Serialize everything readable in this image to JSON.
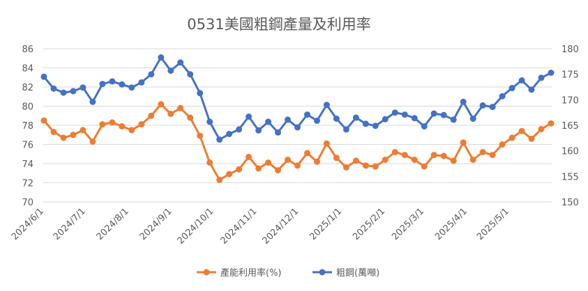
{
  "chart_data": {
    "type": "line",
    "title": "0531美國粗鋼產量及利用率",
    "x_ticks": [
      "2024/6/1",
      "2024/7/1",
      "2024/8/1",
      "2024/9/1",
      "2024/10/1",
      "2024/11/1",
      "2024/12/1",
      "2025/1/1",
      "2025/2/1",
      "2025/3/1",
      "2025/4/1",
      "2025/5/1"
    ],
    "x_range": [
      "2024-06-01",
      "2025-05-31"
    ],
    "y_left": {
      "min": 70,
      "max": 86,
      "step": 2,
      "ticks": [
        "70",
        "72",
        "74",
        "76",
        "78",
        "80",
        "82",
        "84",
        "86"
      ]
    },
    "y_right": {
      "min": 150,
      "max": 180,
      "step": 5,
      "ticks": [
        "150",
        "155",
        "160",
        "165",
        "170",
        "175",
        "180"
      ]
    },
    "grid": true,
    "legend_position": "bottom",
    "series": [
      {
        "name": "產能利用率(%)",
        "axis": "left",
        "color": "#ED7D31",
        "values": [
          78.5,
          77.3,
          76.7,
          77.0,
          77.5,
          76.3,
          78.1,
          78.3,
          77.9,
          77.5,
          78.1,
          79.0,
          80.2,
          79.2,
          79.8,
          78.8,
          76.9,
          74.1,
          72.3,
          72.9,
          73.4,
          74.7,
          73.5,
          74.1,
          73.3,
          74.4,
          73.8,
          75.1,
          74.2,
          76.1,
          74.6,
          73.6,
          74.3,
          73.8,
          73.7,
          74.4,
          75.2,
          74.9,
          74.4,
          73.7,
          74.9,
          74.8,
          74.3,
          76.2,
          74.4,
          75.2,
          74.9,
          76.0,
          76.7,
          77.4,
          76.6,
          77.6,
          78.2
        ]
      },
      {
        "name": "粗鋼(萬噸)",
        "axis": "right",
        "color": "#4472C4",
        "values": [
          174.5,
          172.2,
          171.4,
          171.7,
          172.4,
          169.6,
          173.1,
          173.6,
          173.0,
          172.4,
          173.4,
          175.0,
          178.3,
          175.7,
          177.3,
          175.0,
          171.3,
          165.7,
          162.2,
          163.3,
          164.2,
          166.7,
          164.0,
          165.7,
          163.6,
          166.1,
          164.6,
          167.1,
          165.9,
          169.0,
          166.3,
          164.2,
          166.5,
          165.3,
          164.9,
          166.2,
          167.5,
          167.1,
          166.4,
          164.8,
          167.3,
          167.0,
          166.1,
          169.6,
          166.3,
          168.9,
          168.6,
          170.7,
          172.3,
          173.8,
          172.0,
          174.3,
          175.3
        ]
      }
    ]
  }
}
